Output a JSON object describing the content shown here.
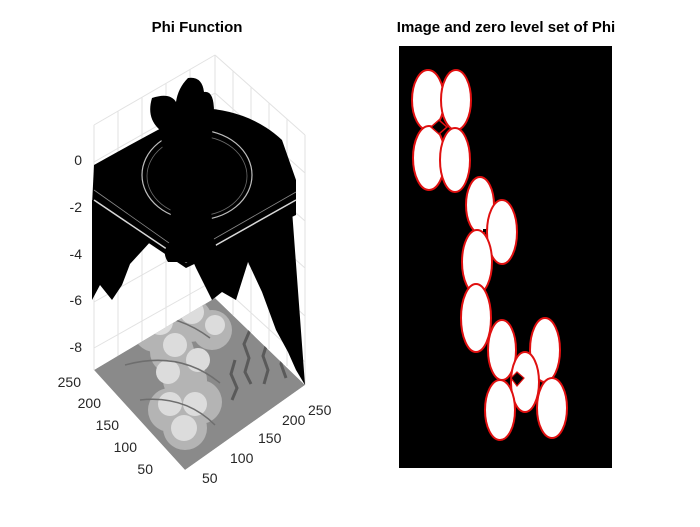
{
  "chart_data": [
    {
      "type": "surface",
      "title": "Phi Function",
      "xlabel": "",
      "ylabel": "",
      "zlabel": "",
      "z_ticks": [
        0,
        -2,
        -4,
        -6,
        -8
      ],
      "x_ticks": [
        50,
        100,
        150,
        200,
        250
      ],
      "y_ticks": [
        50,
        100,
        150,
        200,
        250
      ],
      "zlim": [
        -9,
        1
      ],
      "colormap": "gray",
      "grid": true
    },
    {
      "type": "image",
      "title": "Image and zero level set of Phi",
      "colors": {
        "background": "#000000",
        "objects": "#ffffff",
        "contour": "#e01010"
      },
      "grid": false
    }
  ]
}
